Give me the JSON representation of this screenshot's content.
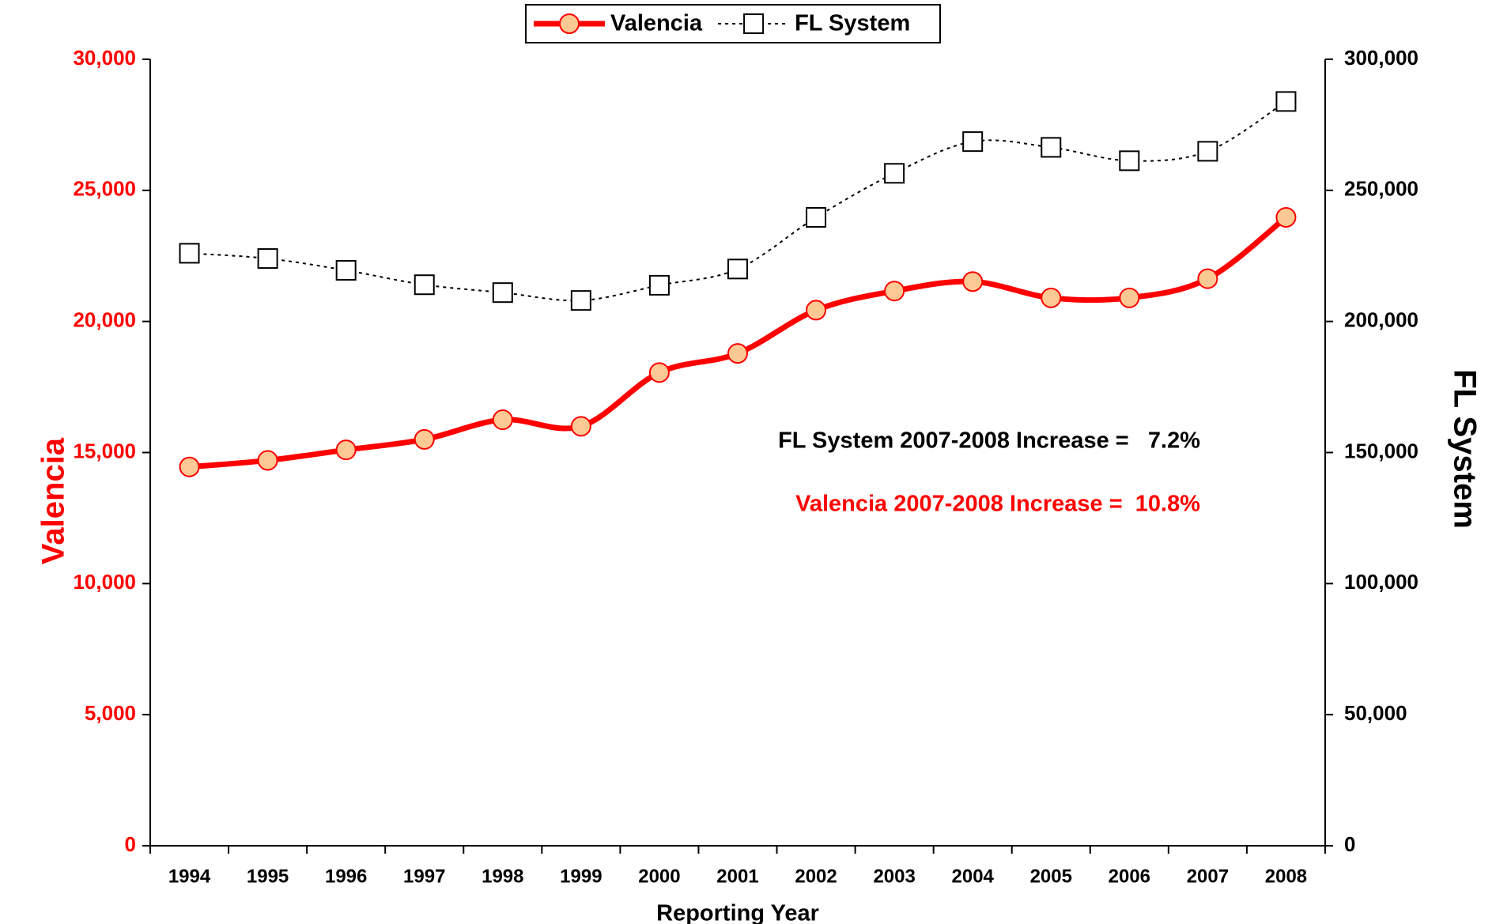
{
  "chart_data": {
    "type": "line",
    "x_label": "Reporting Year",
    "y_label": "Valencia",
    "y2_label": "FL System",
    "categories": [
      "1994",
      "1995",
      "1996",
      "1997",
      "1998",
      "1999",
      "2000",
      "2001",
      "2002",
      "2003",
      "2004",
      "2005",
      "2006",
      "2007",
      "2008"
    ],
    "series": [
      {
        "name": "Valencia",
        "color": "#ff0000",
        "marker_fill": "#fcc994",
        "smooth": true,
        "values": [
          14450,
          14700,
          15100,
          15500,
          16250,
          16000,
          18050,
          18780,
          20430,
          21160,
          21520,
          20900,
          20900,
          21630,
          23970
        ]
      },
      {
        "name": "FL System",
        "color": "#000000",
        "axis": "y2",
        "dashed": true,
        "marker": "square",
        "smooth": true,
        "values": [
          226000,
          224000,
          219500,
          214000,
          211000,
          208000,
          213800,
          220000,
          239700,
          256500,
          268600,
          266400,
          261300,
          264900,
          283900
        ]
      }
    ],
    "ylim": [
      0,
      30000
    ],
    "yticks": [
      0,
      {
        "value": 5000,
        "label": "5,000"
      },
      {
        "value": 10000,
        "label": "10,000"
      },
      {
        "value": 15000,
        "label": "15,000"
      },
      {
        "value": 20000,
        "label": "20,000"
      },
      {
        "value": 25000,
        "label": "25,000"
      },
      {
        "value": 30000,
        "label": "30,000"
      }
    ],
    "y2lim": [
      0,
      300000
    ],
    "y2ticks": [
      0,
      {
        "value": 50000,
        "label": "50,000"
      },
      {
        "value": 100000,
        "label": "100,000"
      },
      {
        "value": 150000,
        "label": "150,000"
      },
      {
        "value": 200000,
        "label": "200,000"
      },
      {
        "value": 250000,
        "label": "250,000"
      },
      {
        "value": 300000,
        "label": "300,000"
      }
    ],
    "legend": "top",
    "annotations": [
      "FL System 2007-2008 Increase =   7.2%",
      "Valencia 2007-2008 Increase =  10.8%"
    ]
  }
}
